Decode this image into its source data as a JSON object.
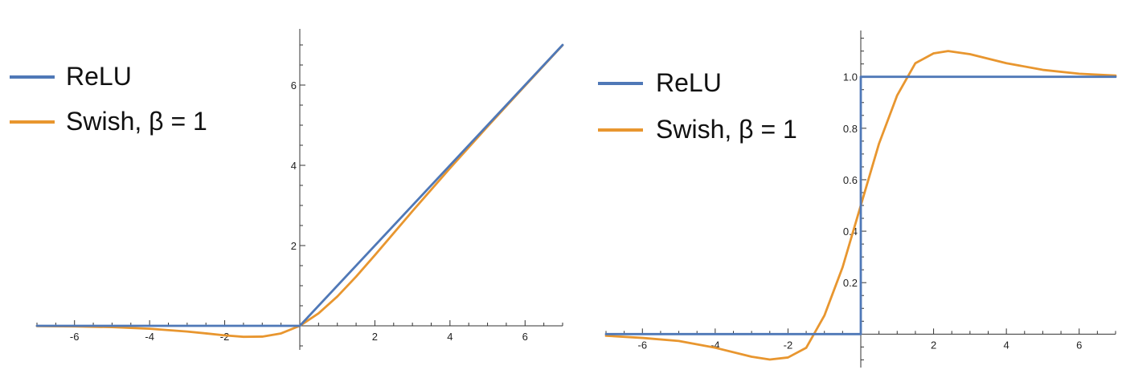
{
  "colors": {
    "relu": "#4f78b7",
    "swish": "#e8962f",
    "axis": "#333333"
  },
  "chart_data": [
    {
      "type": "line",
      "title": "",
      "xlabel": "",
      "ylabel": "",
      "xlim": [
        -7,
        7
      ],
      "ylim": [
        -0.6,
        7.4
      ],
      "grid": false,
      "legend": "top-left",
      "xticks": [
        -6,
        -4,
        -2,
        2,
        4,
        6
      ],
      "yticks": [
        2,
        4,
        6
      ],
      "series": [
        {
          "name": "ReLU",
          "color_key": "relu",
          "x": [
            -7,
            0,
            7
          ],
          "y": [
            0,
            0,
            7
          ]
        },
        {
          "name": "Swish, β = 1",
          "color_key": "swish",
          "x": [
            -7,
            -6,
            -5,
            -4,
            -3,
            -2.5,
            -2,
            -1.5,
            -1,
            -0.5,
            0,
            0.5,
            1,
            1.5,
            2,
            3,
            4,
            5,
            6,
            7
          ],
          "y": [
            -0.006,
            -0.015,
            -0.033,
            -0.072,
            -0.142,
            -0.189,
            -0.238,
            -0.274,
            -0.269,
            -0.189,
            0,
            0.311,
            0.731,
            1.227,
            1.762,
            2.857,
            3.928,
            4.967,
            5.985,
            6.994
          ]
        }
      ]
    },
    {
      "type": "line",
      "title": "",
      "xlabel": "",
      "ylabel": "",
      "xlim": [
        -7,
        7
      ],
      "ylim": [
        -0.13,
        1.18
      ],
      "grid": false,
      "legend": "top-left",
      "xticks": [
        -6,
        -4,
        -2,
        2,
        4,
        6
      ],
      "xtick_labels": [
        "-6",
        "-4",
        "-2",
        "2",
        "4",
        "6"
      ],
      "yticks": [
        0.2,
        0.4,
        0.6,
        0.8,
        1.0
      ],
      "ytick_labels": [
        "0.2",
        "0.4",
        "0.6",
        "0.8",
        "1.0"
      ],
      "series": [
        {
          "name": "ReLU",
          "color_key": "relu",
          "x": [
            -7,
            0,
            0,
            7
          ],
          "y": [
            0,
            0,
            1,
            1
          ]
        },
        {
          "name": "Swish, β = 1",
          "color_key": "swish",
          "x": [
            -7,
            -6,
            -5,
            -4,
            -3,
            -2.5,
            -2,
            -1.5,
            -1,
            -0.5,
            0,
            0.5,
            1,
            1.5,
            2,
            2.4,
            3,
            4,
            5,
            6,
            7
          ],
          "y": [
            -0.0064,
            -0.0148,
            -0.0266,
            -0.053,
            -0.088,
            -0.0988,
            -0.0908,
            -0.0532,
            0.072,
            0.26,
            0.5,
            0.74,
            0.928,
            1.053,
            1.091,
            1.1,
            1.088,
            1.053,
            1.027,
            1.012,
            1.005
          ]
        }
      ]
    }
  ]
}
